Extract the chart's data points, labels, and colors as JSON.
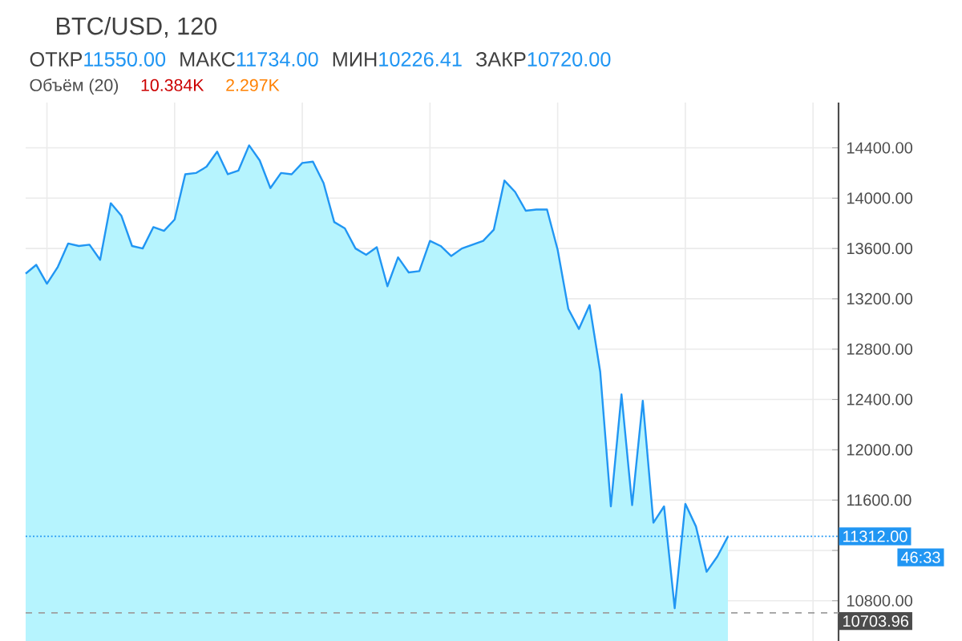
{
  "chart_data": {
    "type": "area",
    "title": "BTC/USD, 120",
    "annotations": [
      "ОТКР",
      "11550.00",
      "МАКС",
      "11734.00",
      "МИН",
      "10226.41",
      "ЗАКР",
      "10720.00",
      "Объём (20)",
      "10.384K",
      "2.297K",
      "46:33"
    ],
    "categories": [
      null,
      null,
      null,
      null,
      null,
      null,
      null,
      null,
      null,
      null,
      null,
      null,
      null,
      null,
      null,
      null,
      null,
      null,
      null,
      null,
      null,
      null,
      null,
      null,
      null,
      null,
      null,
      null,
      null,
      null,
      null,
      null,
      null,
      null,
      null,
      null,
      null,
      null,
      null,
      null,
      null,
      null,
      null,
      null,
      null,
      null,
      null,
      null,
      null,
      null,
      null,
      null,
      null,
      null,
      null,
      null,
      null,
      null,
      null,
      null,
      null,
      null,
      null,
      null,
      null,
      null,
      null
    ],
    "series": [
      {
        "color": "#2196f3",
        "values": [
          13400,
          13470,
          13320,
          13450,
          13640,
          13620,
          13630,
          13510,
          13960,
          13860,
          13620,
          13600,
          13770,
          13740,
          13830,
          14190,
          14200,
          14250,
          14370,
          14190,
          14220,
          14420,
          14300,
          14080,
          14200,
          14190,
          14280,
          14290,
          14120,
          13810,
          13760,
          13600,
          13550,
          13610,
          13300,
          13530,
          13410,
          13420,
          13660,
          13620,
          13540,
          13600,
          13630,
          13660,
          13750,
          14140,
          14050,
          13900,
          13910,
          13910,
          13590,
          13120,
          12960,
          13150,
          12620,
          11550,
          12440,
          11560,
          12390,
          11420,
          11550,
          10740,
          11570,
          11390,
          11030,
          11150,
          11310
        ]
      }
    ],
    "ylim": [
      10480,
      14760
    ],
    "yticks": [
      {
        "value": 10800,
        "label": "10800.00"
      },
      {
        "value": 11200,
        "label": null
      },
      {
        "value": 11600,
        "label": "11600.00"
      },
      {
        "value": 12000,
        "label": "12000.00"
      },
      {
        "value": 12400,
        "label": "12400.00"
      },
      {
        "value": 12800,
        "label": "12800.00"
      },
      {
        "value": 13200,
        "label": "13200.00"
      },
      {
        "value": 13600,
        "label": "13600.00"
      },
      {
        "value": 14000,
        "label": "14000.00"
      },
      {
        "value": 14400,
        "label": "14400.00"
      }
    ],
    "ref_lines": [
      {
        "axis": "y",
        "value": 11312,
        "label": "11312.00",
        "color": "#2196f3",
        "line_style": "dotted"
      },
      {
        "axis": "y",
        "value": 10703.96,
        "label": "10703.96",
        "color": "#9e9e9e",
        "line_style": "dashed"
      }
    ],
    "grid": true,
    "tick_labels": "y"
  }
}
